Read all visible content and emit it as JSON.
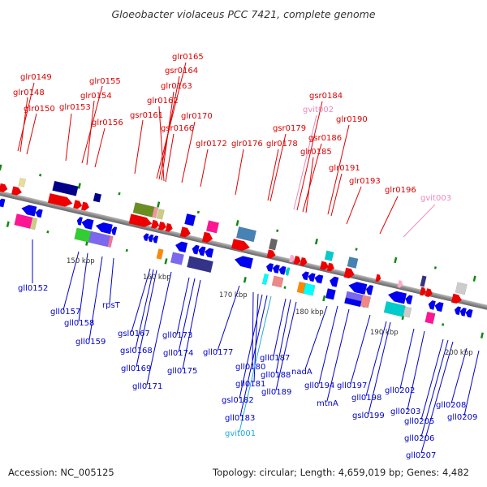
{
  "title": "Gloeobacter violaceus PCC 7421, complete genome",
  "footer": {
    "accession": "Accession: NC_005125",
    "summary": "Topology: circular; Length: 4,659,019 bp; Genes: 4,482"
  },
  "colors": {
    "forward_label": "#dd0000",
    "reverse_label": "#0000cc",
    "pseudo_forward": "#ee88bb",
    "pseudo_reverse": "#22aadd",
    "backbone": "#888888",
    "tick": "#118811"
  },
  "scale_labels": [
    "150 kbp",
    "160 kbp",
    "170 kbp",
    "180 kbp",
    "190 kbp",
    "200 kbp"
  ],
  "forward_genes": [
    {
      "name": "glr0149",
      "kind": "gene"
    },
    {
      "name": "glr0148",
      "kind": "gene"
    },
    {
      "name": "glr0150",
      "kind": "gene"
    },
    {
      "name": "glr0153",
      "kind": "gene"
    },
    {
      "name": "glr0155",
      "kind": "gene"
    },
    {
      "name": "glr0154",
      "kind": "gene"
    },
    {
      "name": "glr0156",
      "kind": "gene"
    },
    {
      "name": "gsr0161",
      "kind": "gene"
    },
    {
      "name": "glr0165",
      "kind": "gene"
    },
    {
      "name": "gsr0164",
      "kind": "gene"
    },
    {
      "name": "glr0163",
      "kind": "gene"
    },
    {
      "name": "glr0162",
      "kind": "gene"
    },
    {
      "name": "gsr0166",
      "kind": "gene"
    },
    {
      "name": "glr0170",
      "kind": "gene"
    },
    {
      "name": "glr0172",
      "kind": "gene"
    },
    {
      "name": "glr0176",
      "kind": "gene"
    },
    {
      "name": "glr0178",
      "kind": "gene"
    },
    {
      "name": "gsr0179",
      "kind": "gene"
    },
    {
      "name": "gvit002",
      "kind": "pseudo"
    },
    {
      "name": "gsr0184",
      "kind": "gene"
    },
    {
      "name": "gsr0186",
      "kind": "gene"
    },
    {
      "name": "glr0185",
      "kind": "gene"
    },
    {
      "name": "glr0190",
      "kind": "gene"
    },
    {
      "name": "glr0191",
      "kind": "gene"
    },
    {
      "name": "glr0193",
      "kind": "gene"
    },
    {
      "name": "glr0196",
      "kind": "gene"
    },
    {
      "name": "gvit003",
      "kind": "pseudo"
    }
  ],
  "reverse_genes": [
    {
      "name": "gll0152",
      "kind": "gene"
    },
    {
      "name": "gll0157",
      "kind": "gene"
    },
    {
      "name": "gll0158",
      "kind": "gene"
    },
    {
      "name": "rpsT",
      "kind": "gene"
    },
    {
      "name": "gll0159",
      "kind": "gene"
    },
    {
      "name": "gsl0167",
      "kind": "gene"
    },
    {
      "name": "gsl0168",
      "kind": "gene"
    },
    {
      "name": "gll0169",
      "kind": "gene"
    },
    {
      "name": "gll0171",
      "kind": "gene"
    },
    {
      "name": "gll0173",
      "kind": "gene"
    },
    {
      "name": "gll0174",
      "kind": "gene"
    },
    {
      "name": "gll0175",
      "kind": "gene"
    },
    {
      "name": "gll0177",
      "kind": "gene"
    },
    {
      "name": "gll0180",
      "kind": "gene"
    },
    {
      "name": "gll0181",
      "kind": "gene"
    },
    {
      "name": "gsl0182",
      "kind": "gene"
    },
    {
      "name": "gll0183",
      "kind": "gene"
    },
    {
      "name": "gvit001",
      "kind": "pseudo"
    },
    {
      "name": "gll0187",
      "kind": "gene"
    },
    {
      "name": "gll0188",
      "kind": "gene"
    },
    {
      "name": "gll0189",
      "kind": "gene"
    },
    {
      "name": "nadA",
      "kind": "gene"
    },
    {
      "name": "gll0194",
      "kind": "gene"
    },
    {
      "name": "mtnA",
      "kind": "gene"
    },
    {
      "name": "gll0197",
      "kind": "gene"
    },
    {
      "name": "gll0198",
      "kind": "gene"
    },
    {
      "name": "gsl0199",
      "kind": "gene"
    },
    {
      "name": "gll0202",
      "kind": "gene"
    },
    {
      "name": "gll0203",
      "kind": "gene"
    },
    {
      "name": "gll0205",
      "kind": "gene"
    },
    {
      "name": "gll0206",
      "kind": "gene"
    },
    {
      "name": "gll0207",
      "kind": "gene"
    },
    {
      "name": "gll0208",
      "kind": "gene"
    },
    {
      "name": "gll0209",
      "kind": "gene"
    }
  ]
}
